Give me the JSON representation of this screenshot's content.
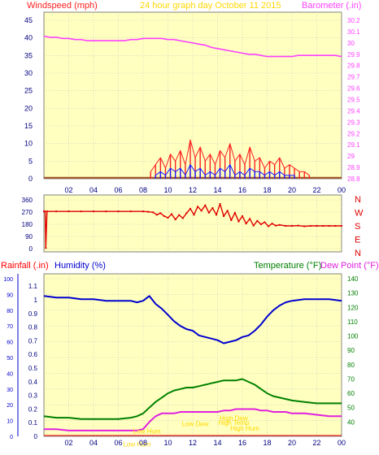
{
  "colors": {
    "background": "#ffffff",
    "plot_bg": "#ffffc0",
    "grid": "#bfbfbf",
    "windspeed": "#ff2020",
    "gust_avg": "#1a1aff",
    "barometer": "#ff40ff",
    "direction": "#e00000",
    "humidity": "#0000d0",
    "temperature": "#008000",
    "dewpoint": "#e020e0",
    "rain_axis": "#ff0000",
    "label_yellow": "#ffd800"
  },
  "header": {
    "windspeed_label": "Windspeed (mph)",
    "title": "24 hour graph day   October 11 2015",
    "barometer_label": "Barometer (.in)"
  },
  "time_ticks": [
    "02",
    "04",
    "06",
    "08",
    "10",
    "12",
    "14",
    "16",
    "18",
    "20",
    "22",
    "00"
  ],
  "panel1": {
    "wind_ticks": [
      "0",
      "5",
      "10",
      "15",
      "20",
      "25",
      "30",
      "35",
      "40",
      "45"
    ],
    "baro_ticks": [
      "28.8",
      "28.9",
      "29",
      "29.1",
      "29.2",
      "29.3",
      "29.4",
      "29.5",
      "29.6",
      "29.7",
      "29.8",
      "29.9",
      "30",
      "30.1",
      "30.2"
    ]
  },
  "panel2": {
    "dir_ticks": [
      "0",
      "90",
      "180",
      "270",
      "360"
    ],
    "compass": [
      "N",
      "W",
      "S",
      "E",
      "N"
    ]
  },
  "panel3": {
    "rainfall_label": "Rainfall (.in)",
    "humidity_label": "Humidity (%)",
    "temperature_label": "Temperature (°F)",
    "dewpoint_label": "Dew Point (°F)",
    "humidity_ticks": [
      "0",
      "10",
      "20",
      "30",
      "40",
      "50",
      "60",
      "70",
      "80",
      "90",
      "100"
    ],
    "rain_ticks": [
      "0",
      "0.1",
      "0.2",
      "0.3",
      "0.4",
      "0.5",
      "0.6",
      "0.7",
      "0.8",
      "0.9",
      "1",
      "1.1"
    ],
    "temp_ticks": [
      "40",
      "50",
      "60",
      "70",
      "80",
      "90",
      "100",
      "110",
      "120",
      "130",
      "140"
    ],
    "annotations": [
      {
        "text": "Low Hum",
        "x": 8.3,
        "y": 32
      },
      {
        "text": "Low Hum",
        "x": 7.5,
        "y": 23
      },
      {
        "text": "Low Dew",
        "x": 12.2,
        "y": 37
      },
      {
        "text": "High Dew",
        "x": 15.3,
        "y": 41
      },
      {
        "text": "High Temp",
        "x": 15.3,
        "y": 38
      },
      {
        "text": "High Hum",
        "x": 16.2,
        "y": 34
      },
      {
        "text": "Low Temp",
        "x": 6.8,
        "y": 15
      }
    ]
  },
  "chart_data": [
    {
      "type": "line",
      "title": "24 hour graph day   October 11 2015",
      "x_axis": "hour",
      "xlim": [
        0,
        24
      ],
      "ylabel": "Windspeed (mph)",
      "ylim": [
        0,
        45
      ],
      "y2label": "Barometer (.in)",
      "y2lim": [
        28.8,
        30.2
      ],
      "grid": true,
      "series": [
        {
          "name": "Barometer (.in)",
          "axis": "right",
          "x": [
            0,
            0.5,
            1,
            1.5,
            2,
            2.5,
            3,
            3.5,
            4,
            4.5,
            5,
            5.5,
            6,
            6.5,
            7,
            7.5,
            8,
            8.5,
            9,
            9.5,
            10,
            10.5,
            11,
            11.5,
            12,
            12.5,
            13,
            13.5,
            14,
            14.5,
            15,
            15.5,
            16,
            16.5,
            17,
            17.5,
            18,
            18.5,
            19,
            19.5,
            20,
            20.5,
            21,
            21.5,
            22,
            22.5,
            23,
            23.5,
            24
          ],
          "values": [
            30.06,
            30.05,
            30.05,
            30.04,
            30.04,
            30.03,
            30.03,
            30.02,
            30.02,
            30.02,
            30.02,
            30.02,
            30.02,
            30.02,
            30.03,
            30.03,
            30.04,
            30.04,
            30.04,
            30.04,
            30.03,
            30.03,
            30.02,
            30.01,
            30.0,
            29.99,
            29.98,
            29.96,
            29.95,
            29.94,
            29.93,
            29.92,
            29.91,
            29.9,
            29.9,
            29.89,
            29.88,
            29.88,
            29.88,
            29.88,
            29.88,
            29.89,
            29.89,
            29.89,
            29.89,
            29.89,
            29.89,
            29.89,
            29.88
          ]
        },
        {
          "name": "Windspeed (mph)",
          "axis": "left",
          "x": [
            0,
            2,
            4,
            6,
            8,
            8.6,
            9,
            9.4,
            9.8,
            10.2,
            10.6,
            11,
            11.4,
            11.8,
            12.2,
            12.6,
            13,
            13.4,
            13.8,
            14.2,
            14.6,
            15,
            15.4,
            15.8,
            16.2,
            16.6,
            17,
            17.4,
            17.8,
            18.2,
            18.6,
            19,
            19.4,
            19.8,
            20.2,
            20.6,
            21,
            21.4,
            22,
            22.6,
            23,
            24
          ],
          "values": [
            0.5,
            0.5,
            0.5,
            0.5,
            0.5,
            2,
            4,
            6,
            3,
            7,
            5,
            8,
            4,
            11,
            6,
            9,
            5,
            7,
            4,
            8,
            6,
            10,
            5,
            7,
            4,
            9,
            5,
            6,
            3,
            5,
            4,
            6,
            3,
            4,
            3,
            2,
            2,
            1,
            0.5,
            0.5,
            0.5,
            0.5
          ]
        },
        {
          "name": "Gust average (mph)",
          "axis": "left",
          "x": [
            0,
            2,
            4,
            6,
            8,
            8.6,
            9,
            9.4,
            9.8,
            10.2,
            10.6,
            11,
            11.4,
            11.8,
            12.2,
            12.6,
            13,
            13.4,
            13.8,
            14.2,
            14.6,
            15,
            15.4,
            15.8,
            16.2,
            16.6,
            17,
            17.4,
            17.8,
            18.2,
            18.6,
            19,
            19.4,
            19.8,
            20.2,
            20.6,
            21,
            21.4,
            22,
            22.6,
            23,
            24
          ],
          "values": [
            0,
            0,
            0,
            0,
            0,
            0.5,
            1,
            2,
            1,
            3,
            2,
            3,
            1,
            4,
            2,
            3,
            1,
            2,
            1,
            3,
            2,
            4,
            1,
            2,
            1,
            3,
            2,
            2,
            1,
            2,
            1,
            2,
            1,
            1,
            1,
            0.5,
            0.5,
            0,
            0,
            0,
            0,
            0
          ]
        }
      ]
    },
    {
      "type": "scatter",
      "x_axis": "hour",
      "xlim": [
        0,
        24
      ],
      "ylim": [
        0,
        360
      ],
      "grid": true,
      "series": [
        {
          "name": "Wind direction (°)",
          "x": [
            0,
            0.1,
            0.15,
            0.25,
            1,
            2,
            3,
            4,
            5,
            6,
            7,
            8,
            8.4,
            8.8,
            9.1,
            9.4,
            9.7,
            10,
            10.3,
            10.6,
            10.9,
            11.2,
            11.5,
            11.8,
            12.1,
            12.4,
            12.7,
            13,
            13.3,
            13.6,
            13.9,
            14.2,
            14.5,
            14.8,
            15.1,
            15.4,
            15.7,
            16,
            16.3,
            16.6,
            16.9,
            17.2,
            17.5,
            17.8,
            18.1,
            18.4,
            18.7,
            19,
            19.5,
            20,
            20.5,
            21,
            21.5,
            22,
            22.5,
            23,
            23.5,
            24
          ],
          "values": [
            275,
            275,
            5,
            275,
            275,
            275,
            275,
            275,
            275,
            275,
            275,
            275,
            272,
            268,
            250,
            262,
            240,
            228,
            255,
            215,
            248,
            225,
            262,
            295,
            250,
            310,
            280,
            320,
            265,
            300,
            250,
            330,
            240,
            280,
            210,
            265,
            200,
            240,
            185,
            220,
            170,
            205,
            180,
            195,
            165,
            185,
            170,
            175,
            168,
            168,
            170,
            165,
            168,
            168,
            168,
            168,
            168,
            168
          ]
        }
      ]
    },
    {
      "type": "line",
      "x_axis": "hour",
      "xlim": [
        0,
        24
      ],
      "ylabel": "Humidity (%)",
      "ylim": [
        0,
        100
      ],
      "y_rain_label": "Rainfall (.in)",
      "y_rain_lim": [
        0,
        1.1
      ],
      "y2label": "Temperature (°F)",
      "y2lim": [
        30,
        140
      ],
      "grid": true,
      "series": [
        {
          "name": "Humidity (%)",
          "axis": "humidity",
          "x": [
            0,
            1,
            2,
            3,
            4,
            5,
            6,
            7,
            7.5,
            8,
            8.5,
            9,
            9.5,
            10,
            10.5,
            11,
            11.5,
            12,
            12.5,
            13,
            13.5,
            14,
            14.5,
            15,
            15.5,
            16,
            16.5,
            17,
            17.5,
            18,
            18.5,
            19,
            19.5,
            20,
            21,
            22,
            23,
            24
          ],
          "values": [
            89,
            88,
            88,
            87,
            87,
            86,
            86,
            86,
            85,
            86,
            89,
            84,
            81,
            77,
            73,
            70,
            68,
            67,
            64,
            63,
            62,
            61,
            59,
            60,
            61,
            63,
            64,
            67,
            71,
            76,
            80,
            83,
            85,
            86,
            87,
            87,
            87,
            86
          ]
        },
        {
          "name": "Temperature (°F)",
          "axis": "right",
          "x": [
            0,
            1,
            2,
            3,
            4,
            5,
            6,
            7,
            7.5,
            8,
            8.5,
            9,
            9.5,
            10,
            10.5,
            11,
            11.5,
            12,
            12.5,
            13,
            13.5,
            14,
            14.5,
            15,
            15.5,
            16,
            16.5,
            17,
            17.5,
            18,
            18.5,
            19,
            19.5,
            20,
            21,
            22,
            23,
            24
          ],
          "values": [
            44,
            43,
            43,
            42,
            42,
            42,
            42,
            43,
            44,
            46,
            50,
            54,
            57,
            60,
            62,
            63,
            64,
            64,
            65,
            66,
            67,
            68,
            69,
            69,
            69,
            70,
            68,
            66,
            63,
            60,
            58,
            57,
            56,
            55,
            54,
            53,
            53,
            53
          ]
        },
        {
          "name": "Dew Point (°F)",
          "axis": "right",
          "x": [
            0,
            1,
            2,
            3,
            4,
            5,
            6,
            7,
            7.5,
            8,
            8.5,
            9,
            9.5,
            10,
            10.5,
            11,
            11.5,
            12,
            12.5,
            13,
            13.5,
            14,
            14.5,
            15,
            15.5,
            16,
            16.5,
            17,
            17.5,
            18,
            18.5,
            19,
            19.5,
            20,
            21,
            22,
            23,
            24
          ],
          "values": [
            35,
            35,
            34,
            34,
            34,
            34,
            34,
            34,
            34,
            35,
            40,
            44,
            46,
            46,
            46,
            47,
            47,
            47,
            47,
            47,
            47,
            47,
            48,
            48,
            49,
            49,
            49,
            49,
            48,
            48,
            47,
            47,
            47,
            46,
            46,
            45,
            44,
            44
          ]
        }
      ]
    }
  ]
}
